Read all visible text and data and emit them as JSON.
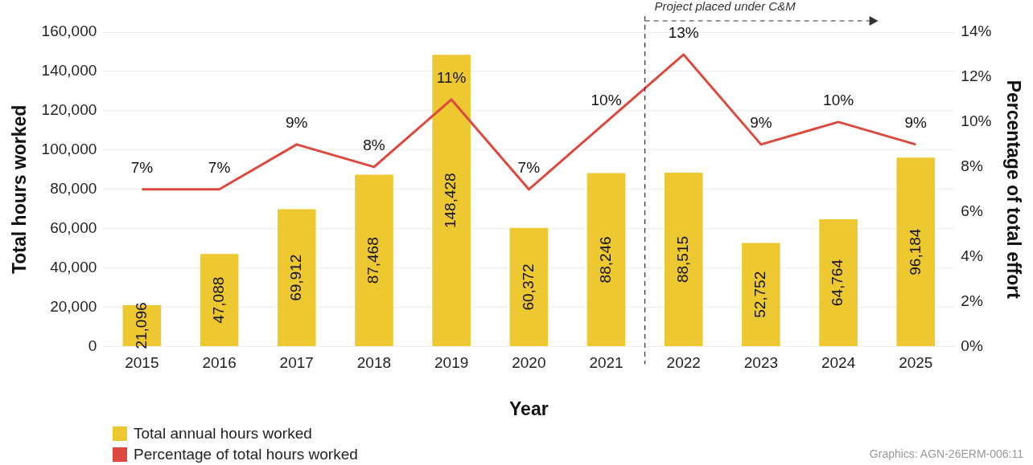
{
  "chart_data": {
    "type": "bar",
    "xlabel": "Year",
    "ylabel": "Total hours worked",
    "y2label": "Percentage of total effort",
    "categories": [
      "2015",
      "2016",
      "2017",
      "2018",
      "2019",
      "2020",
      "2021",
      "2022",
      "2023",
      "2024",
      "2025"
    ],
    "series": [
      {
        "name": "Total annual hours worked",
        "color": "#eec830",
        "values": [
          21096,
          47088,
          69912,
          87468,
          148428,
          60372,
          88246,
          88515,
          52752,
          64764,
          96184
        ],
        "value_labels": [
          "21,096",
          "47,088",
          "69,912",
          "87,468",
          "148,428",
          "60,372",
          "88,246",
          "88,515",
          "52,752",
          "64,764",
          "96,184"
        ]
      },
      {
        "name": "Percentage of total hours worked",
        "type": "line",
        "axis": "y2",
        "color": "#dc4a3f",
        "values": [
          7,
          7,
          9,
          8,
          11,
          7,
          10,
          13,
          9,
          10,
          9
        ],
        "value_labels": [
          "7%",
          "7%",
          "9%",
          "8%",
          "11%",
          "7%",
          "10%",
          "13%",
          "9%",
          "10%",
          "9%"
        ]
      }
    ],
    "ylim": [
      0,
      160000
    ],
    "yticks": [
      {
        "value": 0,
        "label": "0"
      },
      {
        "value": 20000,
        "label": "20,000"
      },
      {
        "value": 40000,
        "label": "40,000"
      },
      {
        "value": 60000,
        "label": "60,000"
      },
      {
        "value": 80000,
        "label": "80,000"
      },
      {
        "value": 100000,
        "label": "100,000"
      },
      {
        "value": 120000,
        "label": "120,000"
      },
      {
        "value": 140000,
        "label": "140,000"
      },
      {
        "value": 160000,
        "label": "160,000"
      }
    ],
    "y2lim": [
      0,
      14
    ],
    "y2ticks": [
      {
        "value": 0,
        "label": "0%"
      },
      {
        "value": 2,
        "label": "2%"
      },
      {
        "value": 4,
        "label": "4%"
      },
      {
        "value": 6,
        "label": "6%"
      },
      {
        "value": 8,
        "label": "8%"
      },
      {
        "value": 10,
        "label": "10%"
      },
      {
        "value": 12,
        "label": "12%"
      },
      {
        "value": 14,
        "label": "14%"
      }
    ],
    "ref_lines": [
      {
        "axis": "x",
        "value": "2022",
        "label": "Project placed under C&M",
        "line_style": "dashed",
        "color": "#333333"
      }
    ],
    "annotations": [
      "Graphics: AGN-26ERM-006:11"
    ],
    "grid": "y",
    "legend": "bottom left",
    "marker": "none",
    "line_style": "solid"
  }
}
